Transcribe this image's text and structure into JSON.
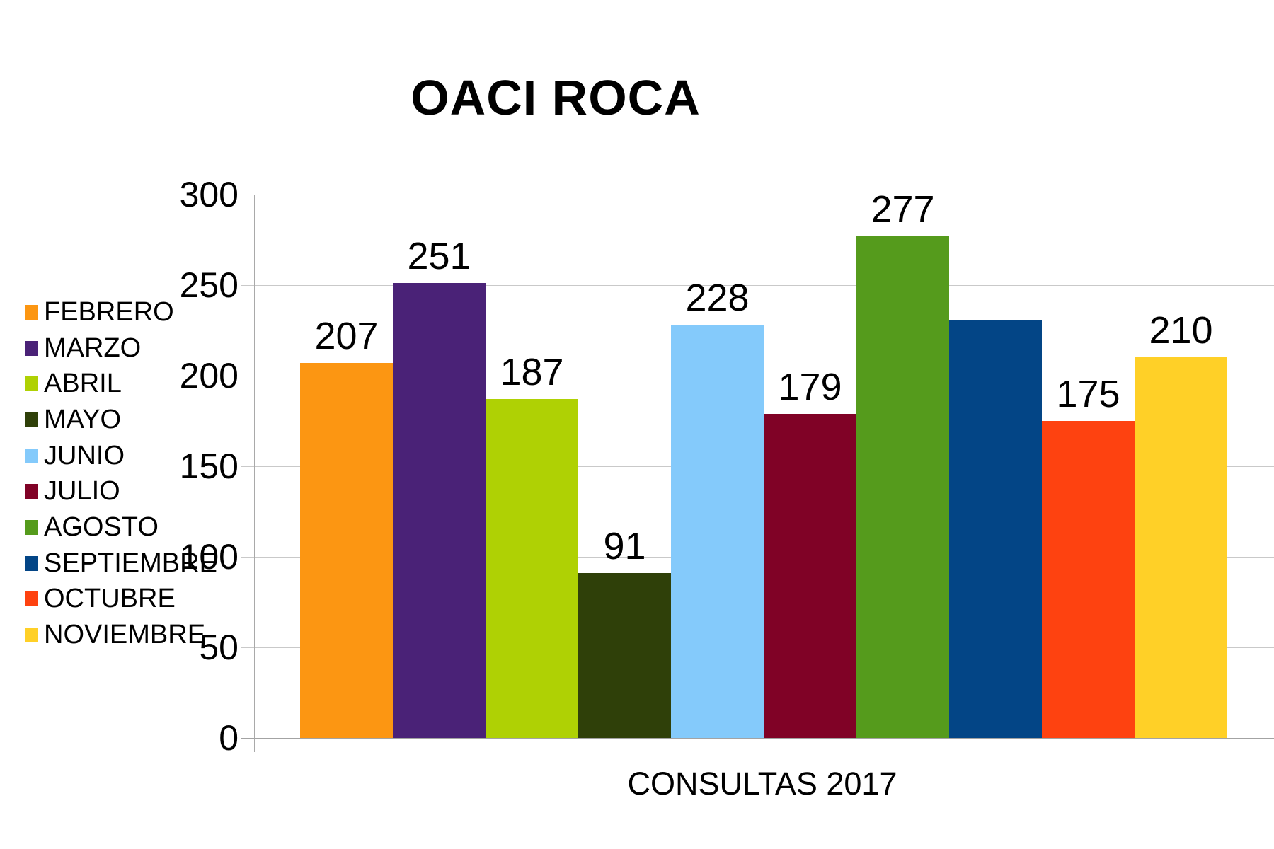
{
  "chart_data": {
    "type": "bar",
    "title": "OACI ROCA",
    "xlabel": "CONSULTAS 2017",
    "ylabel": "",
    "ylim": [
      0,
      300
    ],
    "yticks": [
      0,
      50,
      100,
      150,
      200,
      250,
      300
    ],
    "grid": true,
    "legend_position": "left",
    "categories": [
      "FEBRERO",
      "MARZO",
      "ABRIL",
      "MAYO",
      "JUNIO",
      "JULIO",
      "AGOSTO",
      "SEPTIEMBRE",
      "OCTUBRE",
      "NOVIEMBRE"
    ],
    "series": [
      {
        "name": "FEBRERO",
        "value": 207,
        "data_label": "207",
        "color": "#FC9612"
      },
      {
        "name": "MARZO",
        "value": 251,
        "data_label": "251",
        "color": "#4A2277"
      },
      {
        "name": "ABRIL",
        "value": 187,
        "data_label": "187",
        "color": "#AFD104"
      },
      {
        "name": "MAYO",
        "value": 91,
        "data_label": "91",
        "color": "#2F4009"
      },
      {
        "name": "JUNIO",
        "value": 228,
        "data_label": "228",
        "color": "#84CAFB"
      },
      {
        "name": "JULIO",
        "value": 179,
        "data_label": "179",
        "color": "#800226"
      },
      {
        "name": "AGOSTO",
        "value": 277,
        "data_label": "277",
        "color": "#559B1C"
      },
      {
        "name": "SEPTIEMBRE",
        "value": 231,
        "data_label": "",
        "color": "#034586"
      },
      {
        "name": "OCTUBRE",
        "value": 175,
        "data_label": "175",
        "color": "#FE4210"
      },
      {
        "name": "NOVIEMBRE",
        "value": 210,
        "data_label": "210",
        "color": "#FFD027"
      }
    ],
    "style": {
      "grid_color": "#C9C9C9",
      "axis_color": "#A3A3A3",
      "text_color": "#000000",
      "background_color": "#FFFFFF"
    }
  }
}
